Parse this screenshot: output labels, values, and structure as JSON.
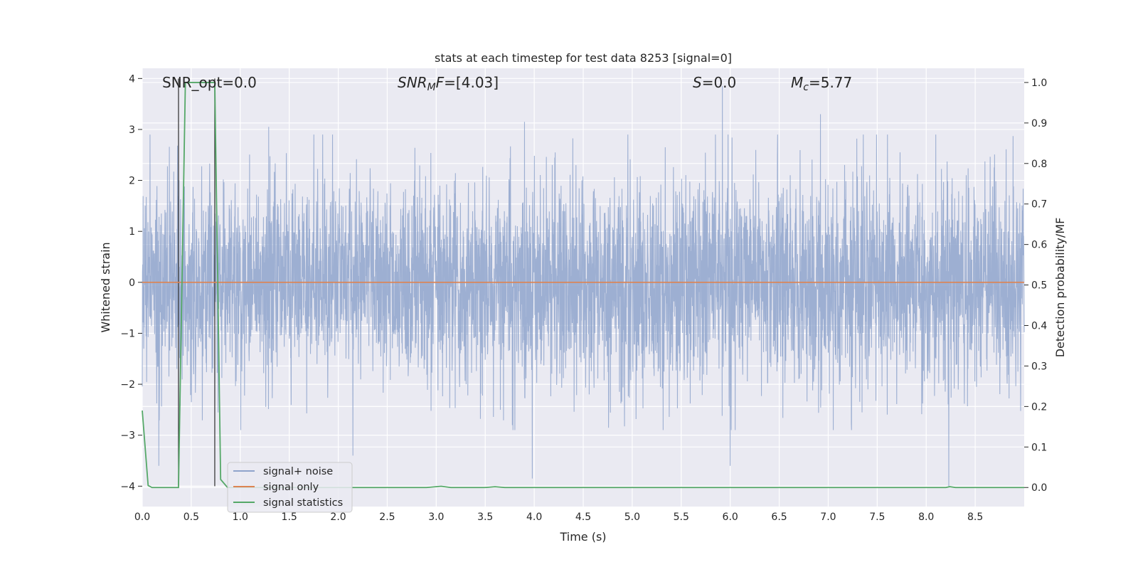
{
  "chart_data": {
    "type": "line",
    "title": "stats at each timestep for test data 8253 [signal=0]",
    "xlabel": "Time (s)",
    "ylabel_left": "Whitened strain",
    "ylabel_right": "Detection probability/MF",
    "xlim": [
      0.0,
      9.0
    ],
    "ylim_left": [
      -4.4,
      4.2
    ],
    "ylim_right": [
      -0.047,
      1.035
    ],
    "x_ticks": [
      0.0,
      0.5,
      1.0,
      1.5,
      2.0,
      2.5,
      3.0,
      3.5,
      4.0,
      4.5,
      5.0,
      5.5,
      6.0,
      6.5,
      7.0,
      7.5,
      8.0,
      8.5
    ],
    "x_tick_labels": [
      "0.0",
      "0.5",
      "1.0",
      "1.5",
      "2.0",
      "2.5",
      "3.0",
      "3.5",
      "4.0",
      "4.5",
      "5.0",
      "5.5",
      "6.0",
      "6.5",
      "7.0",
      "7.5",
      "8.0",
      "8.5"
    ],
    "y_ticks_left": [
      4,
      3,
      2,
      1,
      0,
      -1,
      -2,
      -3,
      -4
    ],
    "y_tick_labels_left": [
      "4",
      "3",
      "2",
      "1",
      "0",
      "−1",
      "−2",
      "−3",
      "−4"
    ],
    "y_ticks_right": [
      1.0,
      0.9,
      0.8,
      0.7,
      0.6,
      0.5,
      0.4,
      0.3,
      0.2,
      0.1,
      0.0
    ],
    "y_tick_labels_right": [
      "1.0",
      "0.9",
      "0.8",
      "0.7",
      "0.6",
      "0.5",
      "0.4",
      "0.3",
      "0.2",
      "0.1",
      "0.0"
    ],
    "grid": true,
    "legend_placement": "lower-left",
    "annotations": {
      "snr_opt": "SNR_opt=0.0",
      "snr_mf_main": "SNR",
      "snr_mf_sub": "M",
      "snr_mf_tail": "F=[4.03]",
      "s_main": "S",
      "s_tail": "=0.0",
      "mc_main": "M",
      "mc_sub": "c",
      "mc_tail": "=5.77"
    },
    "markers_vertical_x": [
      0.37,
      0.74
    ],
    "series": [
      {
        "name": "signal+ noise",
        "color": "#8fa4cc",
        "axis": "left",
        "kind": "noise",
        "notable_spikes": [
          {
            "x": 0.17,
            "y": -3.6
          },
          {
            "x": 1.29,
            "y": 3.05
          },
          {
            "x": 2.15,
            "y": -3.4
          },
          {
            "x": 3.9,
            "y": 3.15
          },
          {
            "x": 3.98,
            "y": -3.85
          },
          {
            "x": 5.92,
            "y": 3.85
          },
          {
            "x": 6.0,
            "y": 3.85
          },
          {
            "x": 6.0,
            "y": -3.6
          },
          {
            "x": 6.92,
            "y": 3.3
          },
          {
            "x": 8.23,
            "y": -4.0
          }
        ]
      },
      {
        "name": "signal only",
        "color": "#dd8452",
        "axis": "left",
        "x": [
          0.0,
          9.0
        ],
        "y": [
          0.0,
          0.0
        ]
      },
      {
        "name": "signal statistics",
        "color": "#55a868",
        "axis": "right",
        "x": [
          0.0,
          0.06,
          0.1,
          0.2,
          0.3,
          0.37,
          0.44,
          0.5,
          0.6,
          0.74,
          0.8,
          0.87,
          1.0,
          2.0,
          2.9,
          3.05,
          3.15,
          3.3,
          3.5,
          3.6,
          3.7,
          4.0,
          5.0,
          6.0,
          7.0,
          8.0,
          8.2,
          8.24,
          8.3,
          9.0
        ],
        "y": [
          0.19,
          0.005,
          0.0,
          0.0,
          0.0,
          0.0,
          1.0,
          1.0,
          1.0,
          1.0,
          0.02,
          0.0,
          0.0,
          0.0,
          0.0,
          0.003,
          0.0,
          0.0,
          0.0,
          0.002,
          0.0,
          0.0,
          0.0,
          0.0,
          0.0,
          0.0,
          0.0,
          0.002,
          0.0,
          0.0
        ]
      }
    ]
  }
}
